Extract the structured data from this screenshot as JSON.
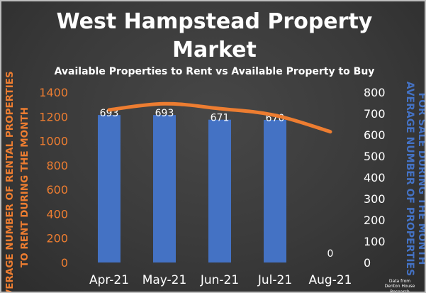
{
  "title_line1": "West Hampstead Property",
  "title_line2": "Market",
  "chart_data": {
    "type": "bar+line",
    "title": "West Hampstead Property Market",
    "subtitle": "Available Properties to Rent vs Available Property to Buy",
    "categories": [
      "Apr-21",
      "May-21",
      "Jun-21",
      "Jul-21",
      "Aug-21"
    ],
    "series": [
      {
        "chart": "bar",
        "axis": "right",
        "values": [
          693,
          693,
          671,
          670,
          0
        ],
        "data_labels": [
          "693",
          "693",
          "671",
          "670",
          "0"
        ],
        "color": "#4472c4"
      },
      {
        "chart": "line",
        "axis": "left",
        "values": [
          1255,
          1305,
          1265,
          1210,
          1075
        ],
        "color": "#ed7d31"
      }
    ],
    "y_left": {
      "label_lines": [
        "AVERAGE NUMBER OF RENTAL PROPERTIES",
        "TO RENT DURING THE MONTH"
      ],
      "range": [
        0,
        1400
      ],
      "ticks": [
        "0",
        "200",
        "400",
        "600",
        "800",
        "1000",
        "1200",
        "1400"
      ],
      "color": "#ed7d31"
    },
    "y_right": {
      "label_lines": [
        "AVERAGE NUMBER OF PROPERTIES",
        "FOR SALE DURING THE MONTH"
      ],
      "range": [
        0,
        800
      ],
      "ticks": [
        "0",
        "100",
        "200",
        "300",
        "400",
        "500",
        "600",
        "700",
        "800"
      ],
      "color": "#4472c4"
    },
    "grid": false,
    "legend": "none"
  },
  "source_note": [
    "Data from",
    "Denton House Research"
  ]
}
